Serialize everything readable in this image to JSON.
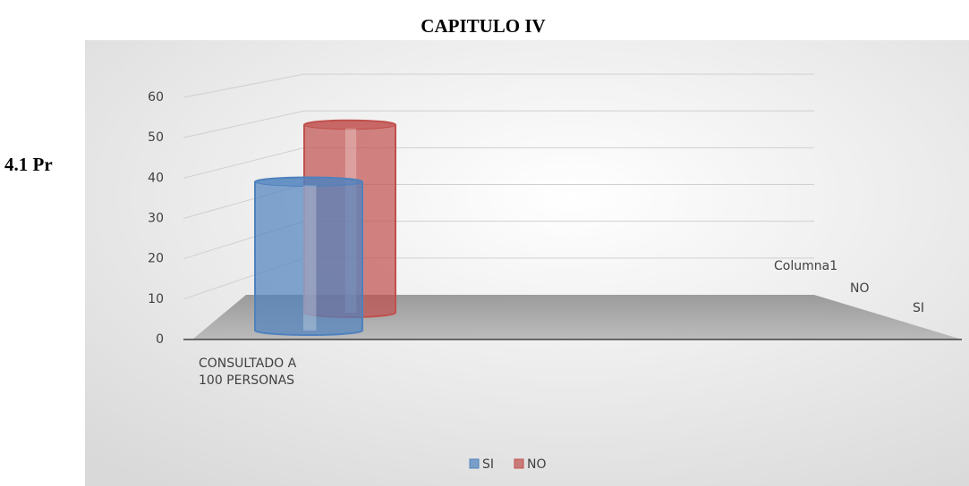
{
  "document": {
    "heading": "CAPITULO IV",
    "section": "4.1 Pr"
  },
  "chart_data": {
    "type": "bar3d",
    "categories": [
      "CONSULTADO A 100 PERSONAS"
    ],
    "series": [
      {
        "name": "SI",
        "color": "#4f81bd",
        "values": [
          38
        ]
      },
      {
        "name": "NO",
        "color": "#c0504d",
        "values": [
          48
        ]
      }
    ],
    "depth_labels": [
      "Columna1",
      "NO",
      "SI"
    ],
    "ylim": [
      0,
      60
    ],
    "yticks": [
      0,
      10,
      20,
      30,
      40,
      50,
      60
    ],
    "grid": true,
    "legend": "bottom"
  }
}
